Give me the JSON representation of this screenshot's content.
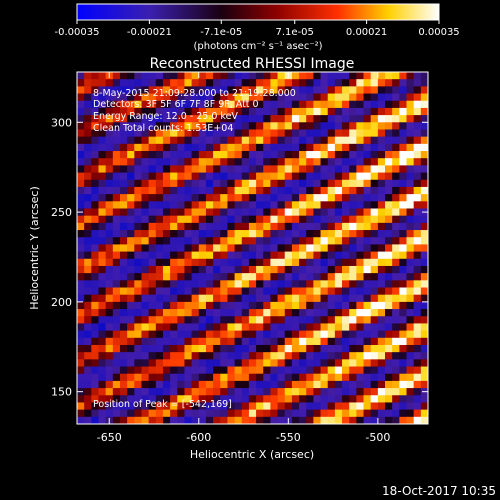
{
  "colorbar": {
    "tick_labels": [
      "-0.00035",
      "-0.00021",
      "-7.1e-05",
      "7.1e-05",
      "0.00021",
      "0.00035"
    ],
    "tick_values": [
      -0.00035,
      -0.00021,
      -7.1e-05,
      7.1e-05,
      0.00021,
      0.00035
    ],
    "range": [
      -0.00035,
      0.00035
    ],
    "units_label": "(photons cm⁻² s⁻¹ asec⁻²)"
  },
  "chart_data": {
    "type": "heatmap",
    "title": "Reconstructed RHESSI Image",
    "xlabel": "Heliocentric X (arcsec)",
    "ylabel": "Heliocentric Y (arcsec)",
    "xlim": [
      -668,
      -472
    ],
    "ylim": [
      132,
      328
    ],
    "x_ticks": [
      -650,
      -600,
      -550,
      -500
    ],
    "y_ticks": [
      150,
      200,
      250,
      300
    ],
    "x_tick_labels": [
      "-650",
      "-600",
      "-550",
      "-500"
    ],
    "y_tick_labels": [
      "150",
      "200",
      "250",
      "300"
    ],
    "peak": [
      -542,
      169
    ],
    "annotations": {
      "time": "8-May-2015 21:09:28.000 to 21:19:28.000",
      "detectors": "Detectors: 3F 5F 6F 7F 8F 9F, Att 0",
      "energy": "Energy Range: 12.0 - 25.0 keV",
      "clean": "Clean    Total counts: 1.53E+04",
      "peak_label": "Position of Peak = [-542,169]"
    },
    "colormap": [
      "#0000ff",
      "#000000",
      "#ff0000",
      "#ffff00",
      "#ffffff"
    ]
  },
  "footer": {
    "timestamp": "18-Oct-2017 10:35"
  }
}
